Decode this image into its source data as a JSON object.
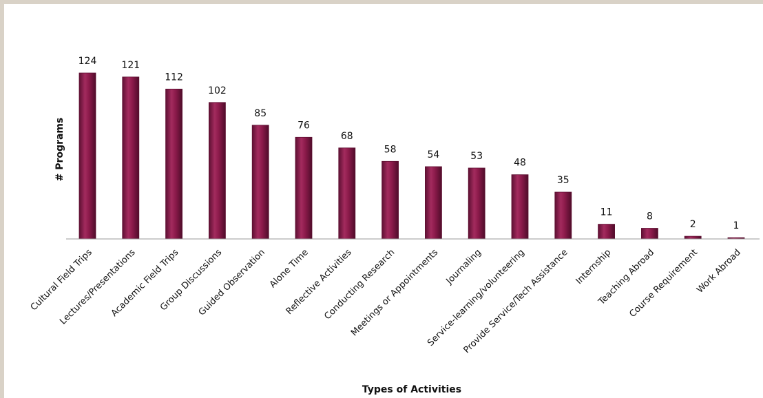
{
  "chart_data": {
    "type": "bar",
    "title": "",
    "xlabel": "Types of Activities",
    "ylabel": "# Programs",
    "ylim": [
      0,
      124
    ],
    "grid": false,
    "categories": [
      "Cultural Field Trips",
      "Lectures/Presentations",
      "Academic Field Trips",
      "Group Discussions",
      "Guided Observation",
      "Alone Time",
      "Reflective Activities",
      "Conducting Research",
      "Meetings or Appointments",
      "Journaling",
      "Service-learning/volunteering",
      "Provide Service/Tech Assistance",
      "Internship",
      "Teaching Abroad",
      "Course Requirement",
      "Work Abroad"
    ],
    "values": [
      124,
      121,
      112,
      102,
      85,
      76,
      68,
      58,
      54,
      53,
      48,
      35,
      11,
      8,
      2,
      1
    ],
    "bar_color": "#8b1a4a",
    "bar_edge_color": "#5e0f31"
  }
}
